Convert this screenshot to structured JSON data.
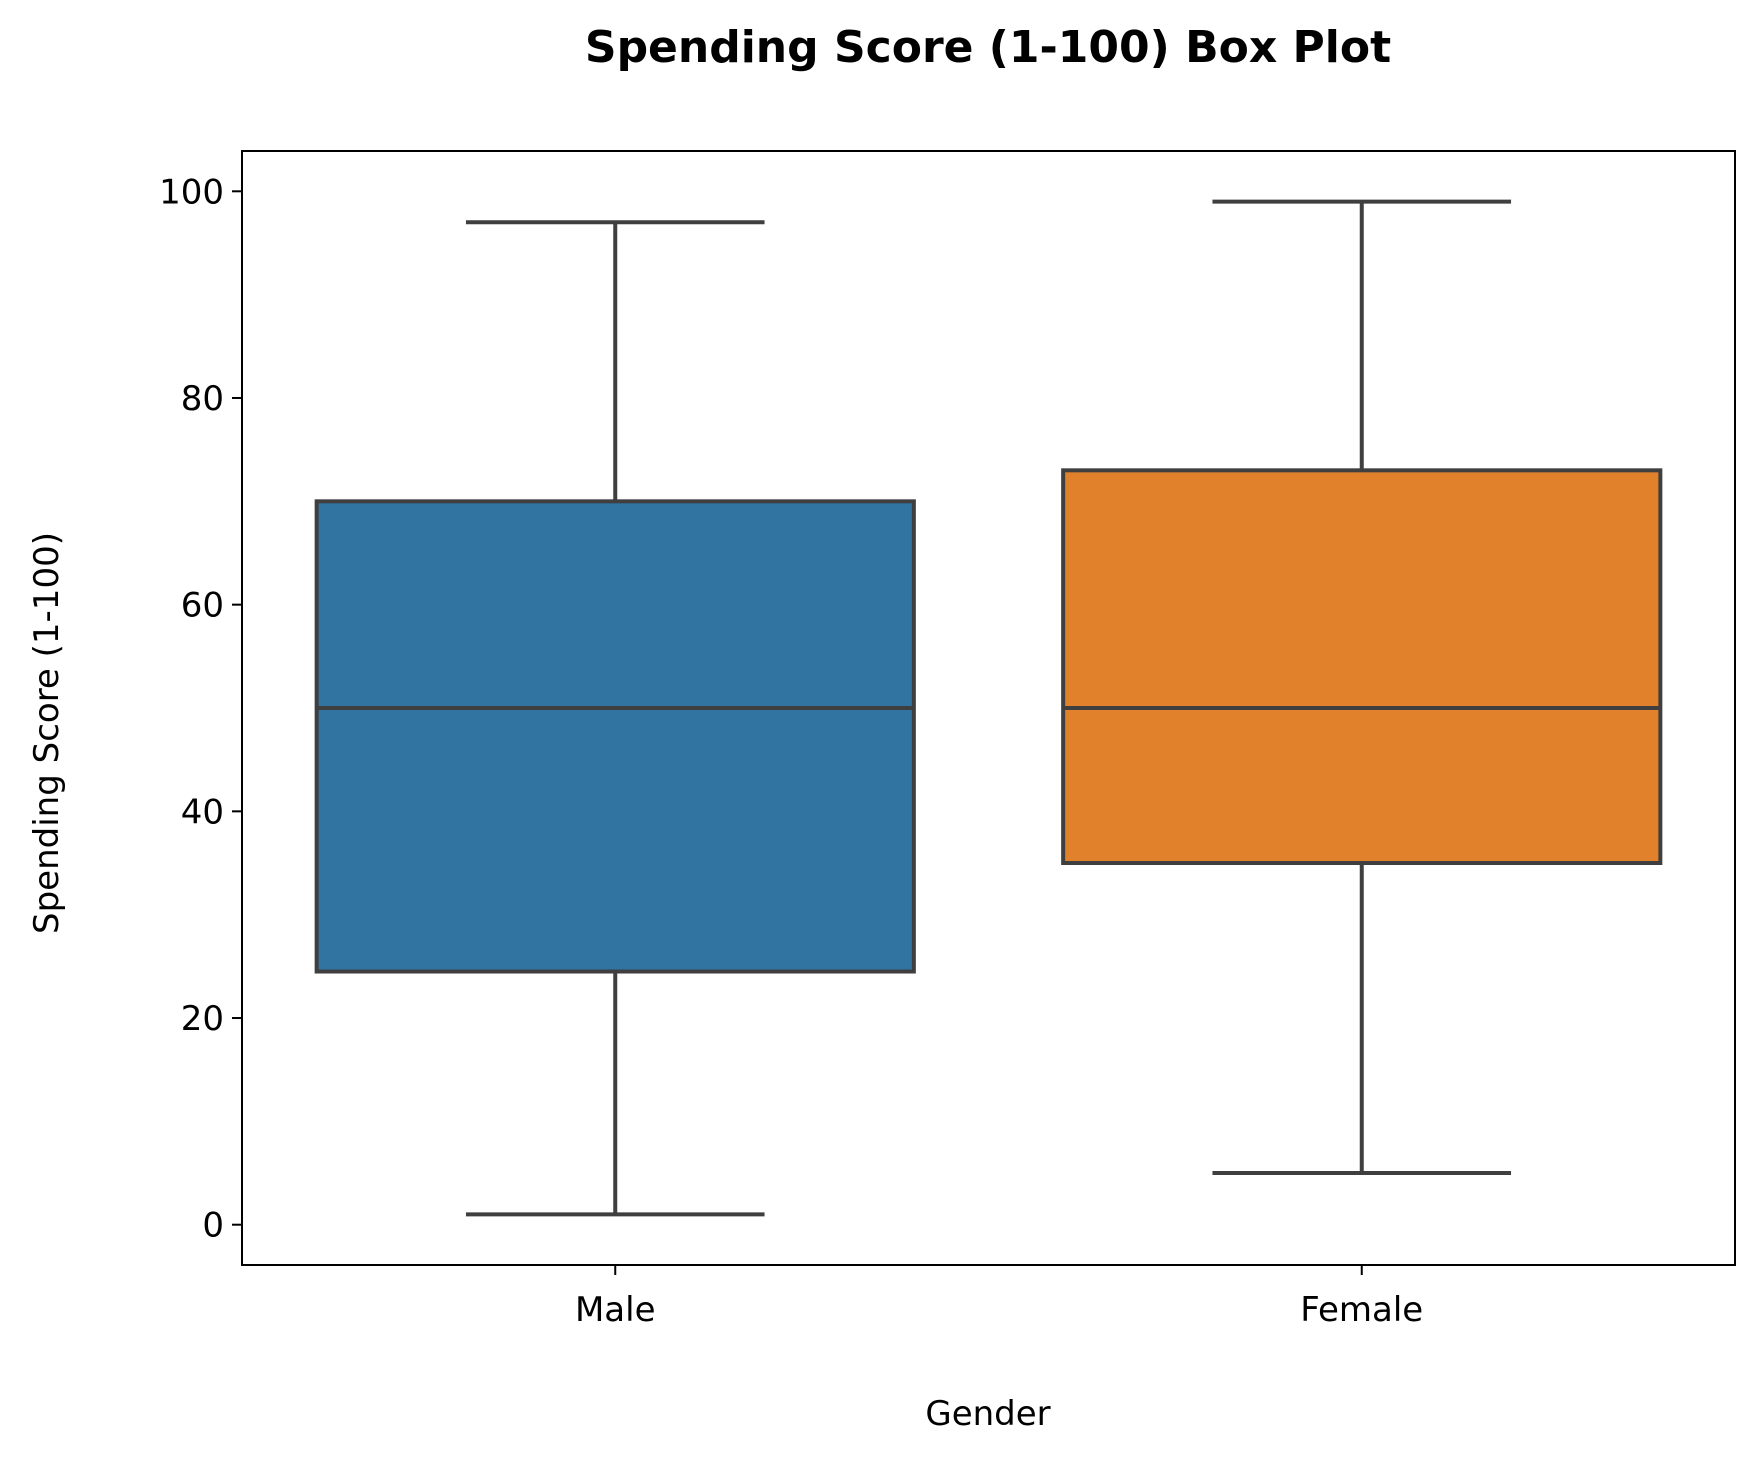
{
  "chart_data": {
    "type": "box",
    "title": "Spending Score (1-100) Box Plot",
    "xlabel": "Gender",
    "ylabel": "Spending Score (1-100)",
    "categories": [
      "Male",
      "Female"
    ],
    "boxes": [
      {
        "category": "Male",
        "min": 1,
        "q1": 24.5,
        "median": 50,
        "q3": 70,
        "max": 97,
        "color": "#3274a1"
      },
      {
        "category": "Female",
        "min": 5,
        "q1": 35,
        "median": 50,
        "q3": 73,
        "max": 99,
        "color": "#e1812c"
      }
    ],
    "ylim": [
      -3.9,
      103.9
    ],
    "yticks": [
      0,
      20,
      40,
      60,
      80,
      100
    ],
    "grid": false,
    "line_color": "#3f3f3f"
  }
}
